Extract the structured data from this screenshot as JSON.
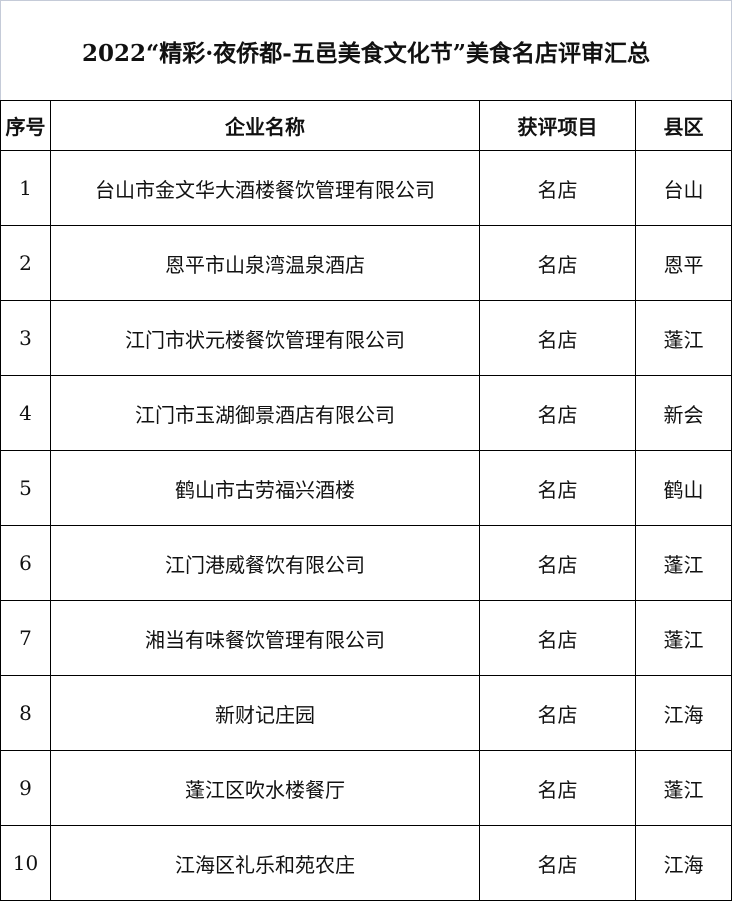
{
  "title": "2022“精彩·夜侨都-五邑美食文化节”美食名店评审汇总",
  "headers": [
    "序号",
    "企业名称",
    "获评项目",
    "县区"
  ],
  "rows": [
    [
      "1",
      "台山市金文华大酒楼餐饮管理有限公司",
      "名店",
      "台山"
    ],
    [
      "2",
      "恩平市山泉湾温泉酒店",
      "名店",
      "恩平"
    ],
    [
      "3",
      "江门市状元楼餐饮管理有限公司",
      "名店",
      "蓬江"
    ],
    [
      "4",
      "江门市玉湖御景酒店有限公司",
      "名店",
      "新会"
    ],
    [
      "5",
      "鹤山市古劳福兴酒楼",
      "名店",
      "鹤山"
    ],
    [
      "6",
      "江门港威餐饮有限公司",
      "名店",
      "蓬江"
    ],
    [
      "7",
      "湘当有味餐饮管理有限公司",
      "名店",
      "蓬江"
    ],
    [
      "8",
      "新财记庄园",
      "名店",
      "江海"
    ],
    [
      "9",
      "蓬江区吹水楼餐厅",
      "名店",
      "蓬江"
    ],
    [
      "10",
      "江海区礼乐和苑农庄",
      "名店",
      "江海"
    ]
  ]
}
